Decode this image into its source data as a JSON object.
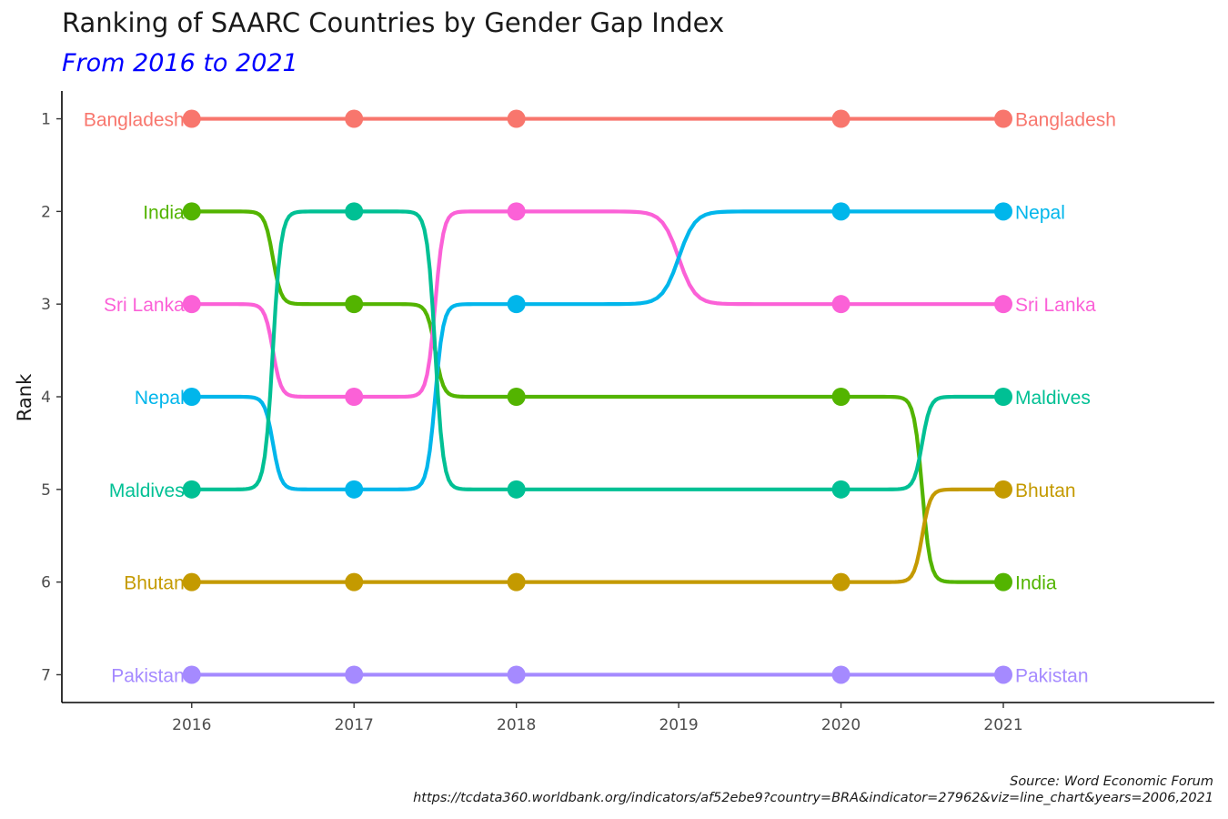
{
  "title": "Ranking of SAARC Countries by Gender Gap Index",
  "subtitle": "From 2016 to 2021",
  "caption": {
    "line1": "Source: Word Economic Forum",
    "line2": "https://tcdata360.worldbank.org/indicators/af52ebe9?country=BRA&indicator=27962&viz=line_chart&years=2006,2021"
  },
  "chart_data": {
    "type": "line",
    "subtype": "bump chart",
    "x": [
      2016,
      2017,
      2018,
      2020,
      2021
    ],
    "x_ticks": [
      2016,
      2017,
      2018,
      2019,
      2020,
      2021
    ],
    "xlim": [
      2015.2,
      2022.3
    ],
    "ylabel": "Rank",
    "xlabel": "",
    "y_ticks": [
      1,
      2,
      3,
      4,
      5,
      6,
      7
    ],
    "ylim": [
      7.3,
      0.7
    ],
    "y_reversed": true,
    "grid": false,
    "legend": "none",
    "series": [
      {
        "name": "Bangladesh",
        "color": "#F8766D",
        "values": [
          1,
          1,
          1,
          1,
          1
        ]
      },
      {
        "name": "India",
        "color": "#53B400",
        "values": [
          2,
          3,
          4,
          4,
          6
        ]
      },
      {
        "name": "Sri Lanka",
        "color": "#FB61D7",
        "values": [
          3,
          4,
          2,
          3,
          3
        ]
      },
      {
        "name": "Nepal",
        "color": "#00B6EB",
        "values": [
          4,
          5,
          3,
          2,
          2
        ]
      },
      {
        "name": "Maldives",
        "color": "#00C094",
        "values": [
          5,
          2,
          5,
          5,
          4
        ]
      },
      {
        "name": "Bhutan",
        "color": "#C49A00",
        "values": [
          6,
          6,
          6,
          6,
          5
        ]
      },
      {
        "name": "Pakistan",
        "color": "#A58AFF",
        "values": [
          7,
          7,
          7,
          7,
          7
        ]
      }
    ]
  }
}
